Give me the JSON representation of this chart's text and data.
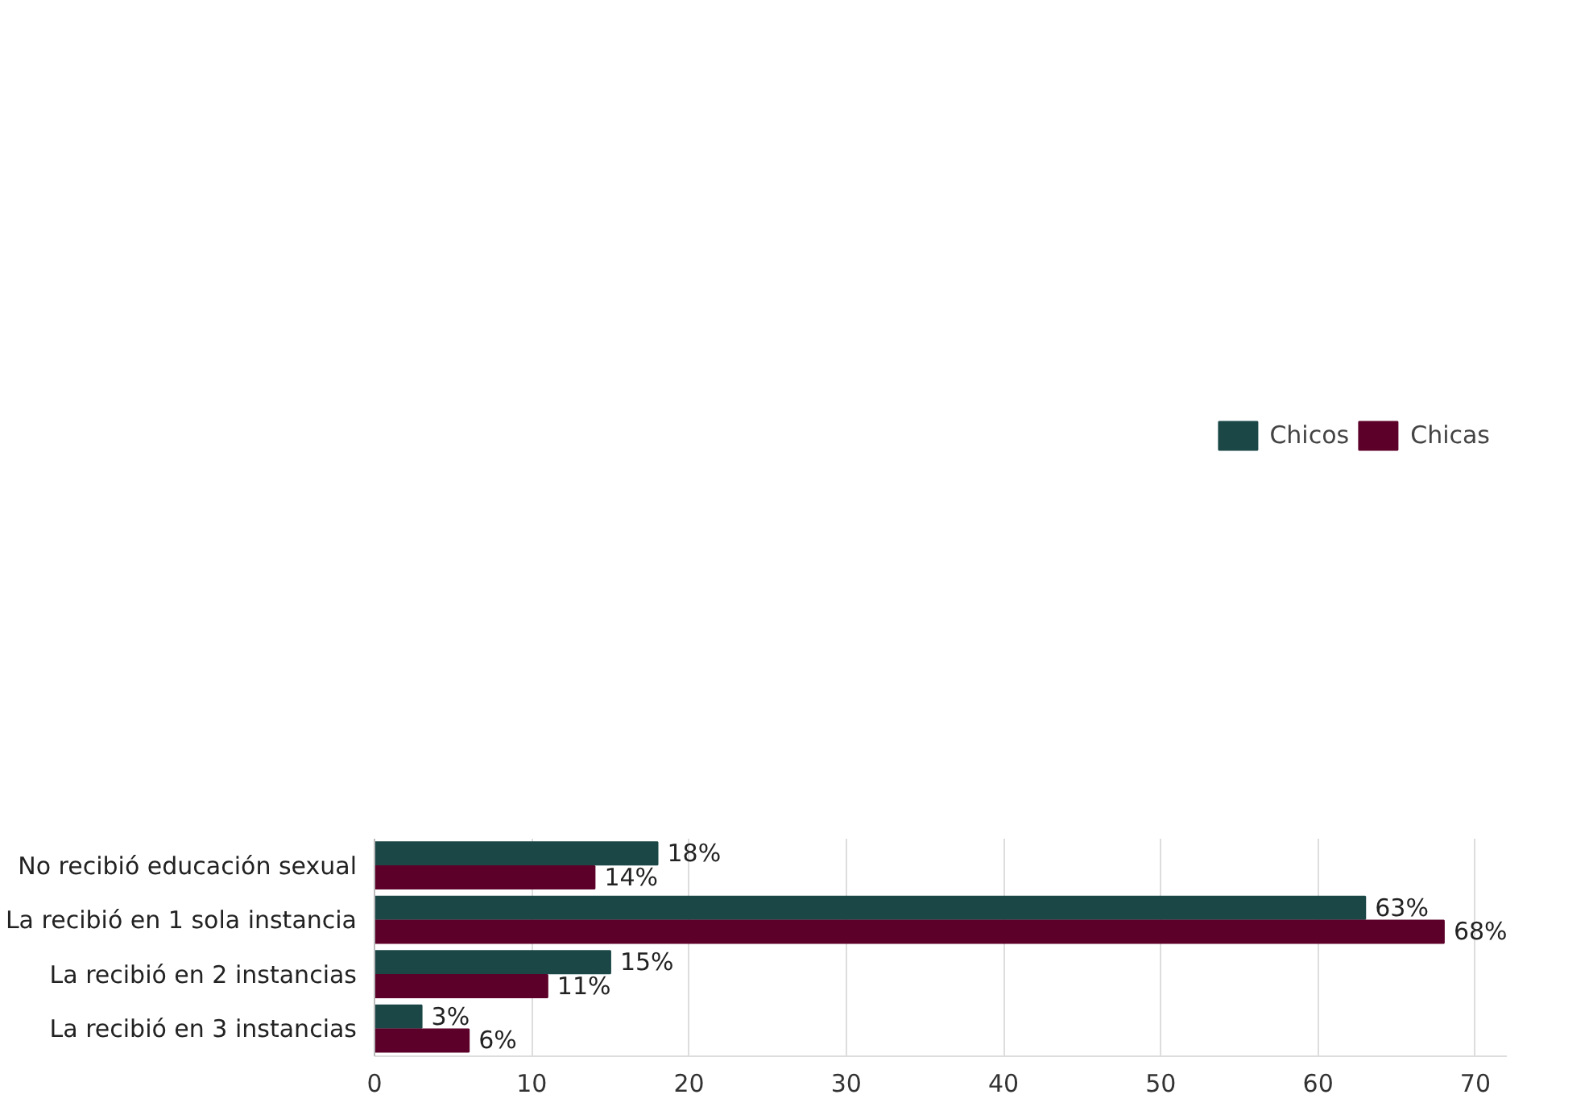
{
  "chart_data": {
    "type": "bar",
    "orientation": "horizontal",
    "categories": [
      "No recibió educación sexual",
      "La recibió en 1 sola instancia",
      "La recibió en 2 instancias",
      "La recibió en 3 instancias"
    ],
    "series": [
      {
        "name": "Chicos",
        "color": "#1b4747",
        "values": [
          18,
          63,
          15,
          3
        ],
        "value_labels": [
          "18%",
          "63%",
          "15%",
          "3%"
        ]
      },
      {
        "name": "Chicas",
        "color": "#5c0029",
        "values": [
          14,
          68,
          11,
          6
        ],
        "value_labels": [
          "14%",
          "68%",
          "11%",
          "6%"
        ]
      }
    ],
    "xlim": [
      0,
      72
    ],
    "xticks": [
      0,
      10,
      20,
      30,
      40,
      50,
      60,
      70
    ],
    "grid": "x",
    "legend": "top"
  }
}
